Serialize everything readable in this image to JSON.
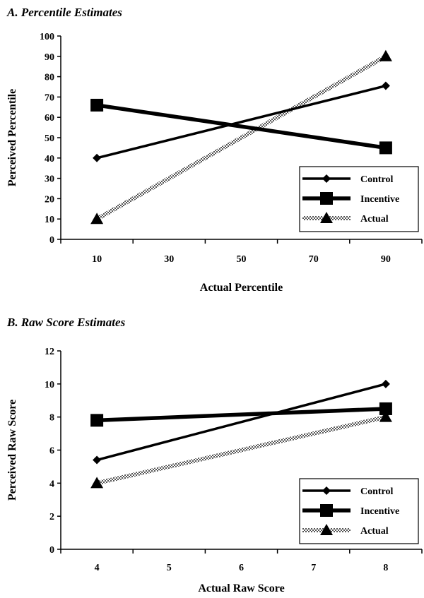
{
  "chart_data": [
    {
      "type": "line",
      "title": "A. Percentile Estimates",
      "xlabel": "Actual Percentile",
      "ylabel": "Perceived Percentile",
      "categories": [
        "10",
        "30",
        "50",
        "70",
        "90"
      ],
      "x": [
        10,
        90
      ],
      "xlim": [
        0,
        100
      ],
      "ylim": [
        0,
        100
      ],
      "yticks": [
        0,
        10,
        20,
        30,
        40,
        50,
        60,
        70,
        80,
        90,
        100
      ],
      "legend_position": "bottom-right",
      "series": [
        {
          "name": "Control",
          "marker": "diamond",
          "style": "solid",
          "values": [
            40,
            75.5
          ]
        },
        {
          "name": "Incentive",
          "marker": "square",
          "style": "solid-thick",
          "values": [
            66,
            45
          ]
        },
        {
          "name": "Actual",
          "marker": "triangle",
          "style": "checkered",
          "values": [
            10,
            90
          ]
        }
      ]
    },
    {
      "type": "line",
      "title": "B. Raw Score Estimates",
      "xlabel": "Actual Raw Score",
      "ylabel": "Perceived Raw Score",
      "categories": [
        "4",
        "5",
        "6",
        "7",
        "8"
      ],
      "x": [
        4,
        8
      ],
      "xlim": [
        3.5,
        8.5
      ],
      "ylim": [
        0,
        12
      ],
      "yticks": [
        0,
        2,
        4,
        6,
        8,
        10,
        12
      ],
      "legend_position": "bottom-right",
      "series": [
        {
          "name": "Control",
          "marker": "diamond",
          "style": "solid",
          "values": [
            5.4,
            10
          ]
        },
        {
          "name": "Incentive",
          "marker": "square",
          "style": "solid-thick",
          "values": [
            7.8,
            8.5
          ]
        },
        {
          "name": "Actual",
          "marker": "triangle",
          "style": "checkered",
          "values": [
            4,
            8
          ]
        }
      ]
    }
  ]
}
